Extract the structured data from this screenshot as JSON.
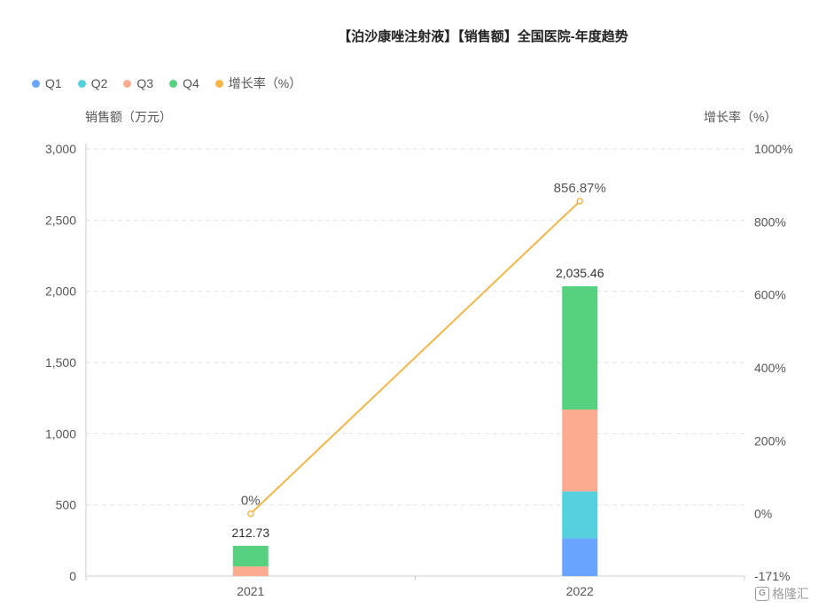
{
  "title": "【泊沙康唑注射液】【销售额】全国医院-年度趋势",
  "legend": [
    {
      "label": "Q1",
      "color": "#69a5ff"
    },
    {
      "label": "Q2",
      "color": "#55d1dd"
    },
    {
      "label": "Q3",
      "color": "#fbab8f"
    },
    {
      "label": "Q4",
      "color": "#55d180"
    },
    {
      "label": "增长率（%）",
      "color": "#f5b648"
    }
  ],
  "axis": {
    "left_title": "销售额（万元）",
    "right_title": "增长率（%）",
    "left_ticks": [
      "0",
      "500",
      "1,000",
      "1,500",
      "2,000",
      "2,500",
      "3,000"
    ],
    "right_ticks": [
      "-171%",
      "0%",
      "200%",
      "400%",
      "600%",
      "800%",
      "1000%"
    ]
  },
  "chart_data": {
    "type": "bar",
    "stacked": true,
    "categories": [
      "2021",
      "2022"
    ],
    "series": [
      {
        "name": "Q1",
        "values": [
          0,
          265
        ]
      },
      {
        "name": "Q2",
        "values": [
          0,
          330
        ]
      },
      {
        "name": "Q3",
        "values": [
          68,
          575
        ]
      },
      {
        "name": "Q4",
        "values": [
          144.73,
          865.46
        ]
      }
    ],
    "totals": [
      212.73,
      2035.46
    ],
    "total_labels": [
      "212.73",
      "2,035.46"
    ],
    "line": {
      "name": "增长率（%）",
      "values": [
        0,
        856.87
      ],
      "labels": [
        "0%",
        "856.87%"
      ],
      "axis": "right"
    },
    "ylim_left": [
      0,
      3000
    ],
    "ylim_right": [
      -171,
      1000
    ],
    "grid": true,
    "legend_position": "top-left"
  },
  "watermark": {
    "icon": "G",
    "text": "格隆汇"
  }
}
